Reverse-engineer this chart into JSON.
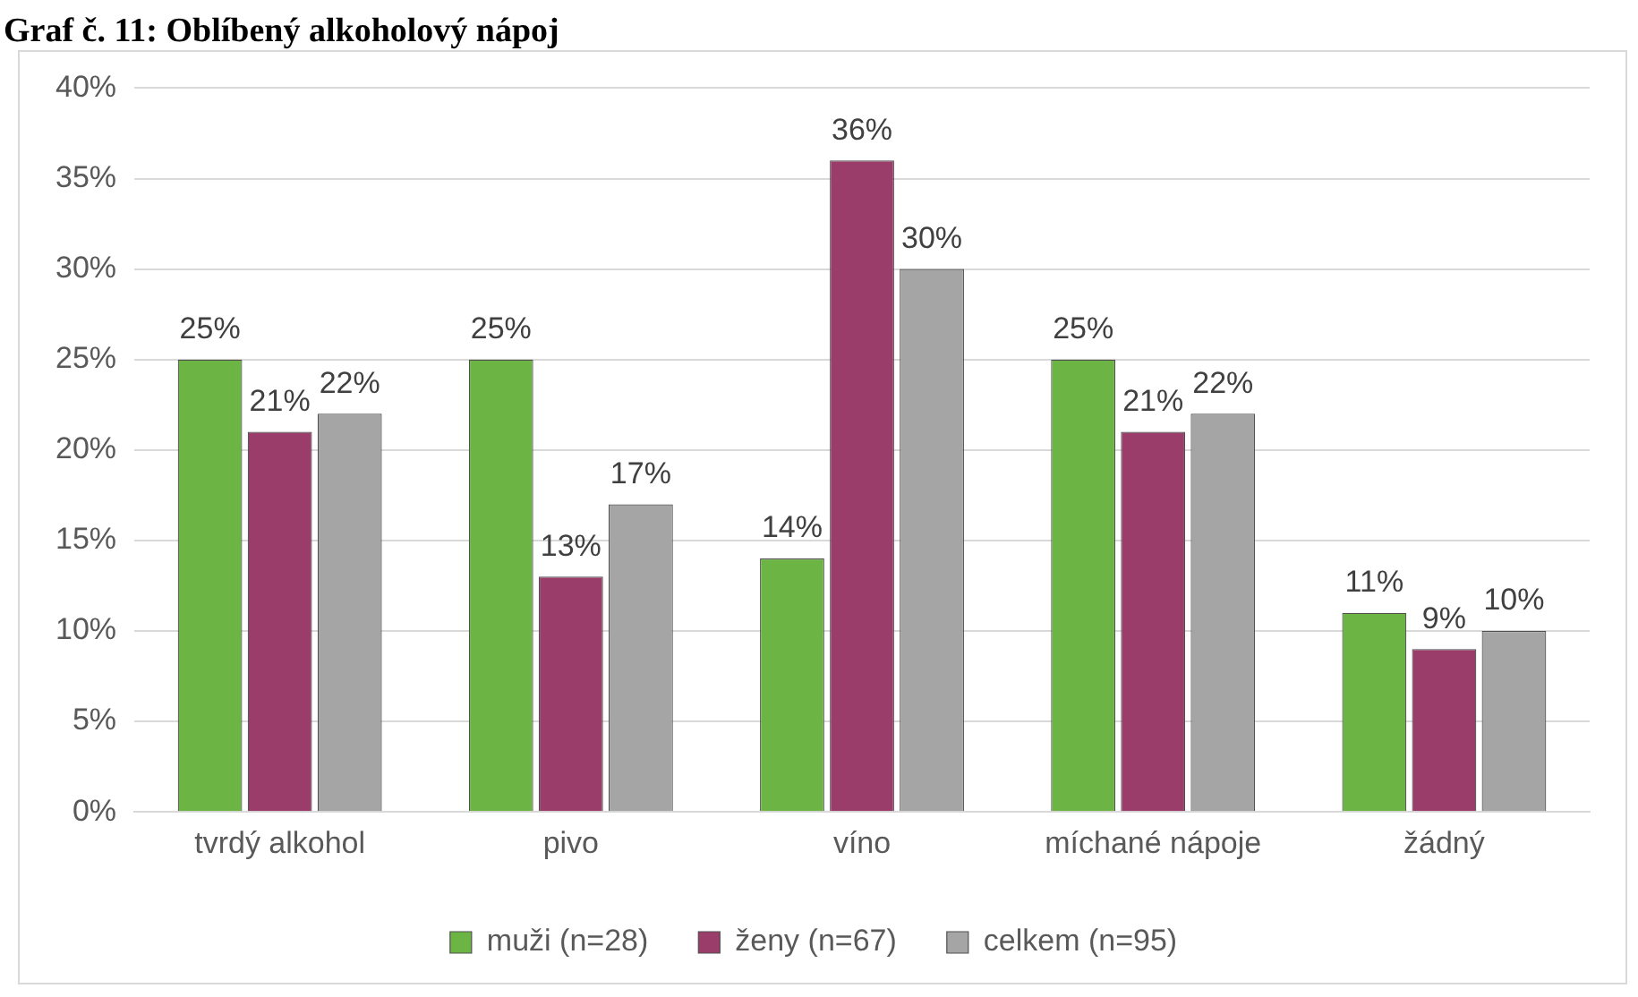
{
  "chart_data": {
    "type": "bar",
    "title": "Graf č. 11: Oblíbený alkoholový nápoj",
    "categories": [
      "tvrdý alkohol",
      "pivo",
      "víno",
      "míchané nápoje",
      "žádný"
    ],
    "series": [
      {
        "name": "muži (n=28)",
        "color": "#6cb444",
        "values": [
          25,
          25,
          14,
          25,
          11
        ],
        "value_labels": [
          "25%",
          "25%",
          "14%",
          "25%",
          "11%"
        ]
      },
      {
        "name": "ženy (n=67)",
        "color": "#9b3d6a",
        "values": [
          21,
          13,
          36,
          21,
          9
        ],
        "value_labels": [
          "21%",
          "13%",
          "36%",
          "21%",
          "9%"
        ]
      },
      {
        "name": "celkem (n=95)",
        "color": "#a5a5a5",
        "values": [
          22,
          17,
          30,
          22,
          10
        ],
        "value_labels": [
          "22%",
          "17%",
          "30%",
          "22%",
          "10%"
        ]
      }
    ],
    "ylim": [
      0,
      40
    ],
    "yticks": [
      {
        "value": 0,
        "label": "0%"
      },
      {
        "value": 5,
        "label": "5%"
      },
      {
        "value": 10,
        "label": "10%"
      },
      {
        "value": 15,
        "label": "15%"
      },
      {
        "value": 20,
        "label": "20%"
      },
      {
        "value": 25,
        "label": "25%"
      },
      {
        "value": 30,
        "label": "30%"
      },
      {
        "value": 35,
        "label": "35%"
      },
      {
        "value": 40,
        "label": "40%"
      }
    ],
    "grid": "y",
    "legend": "bottom"
  }
}
